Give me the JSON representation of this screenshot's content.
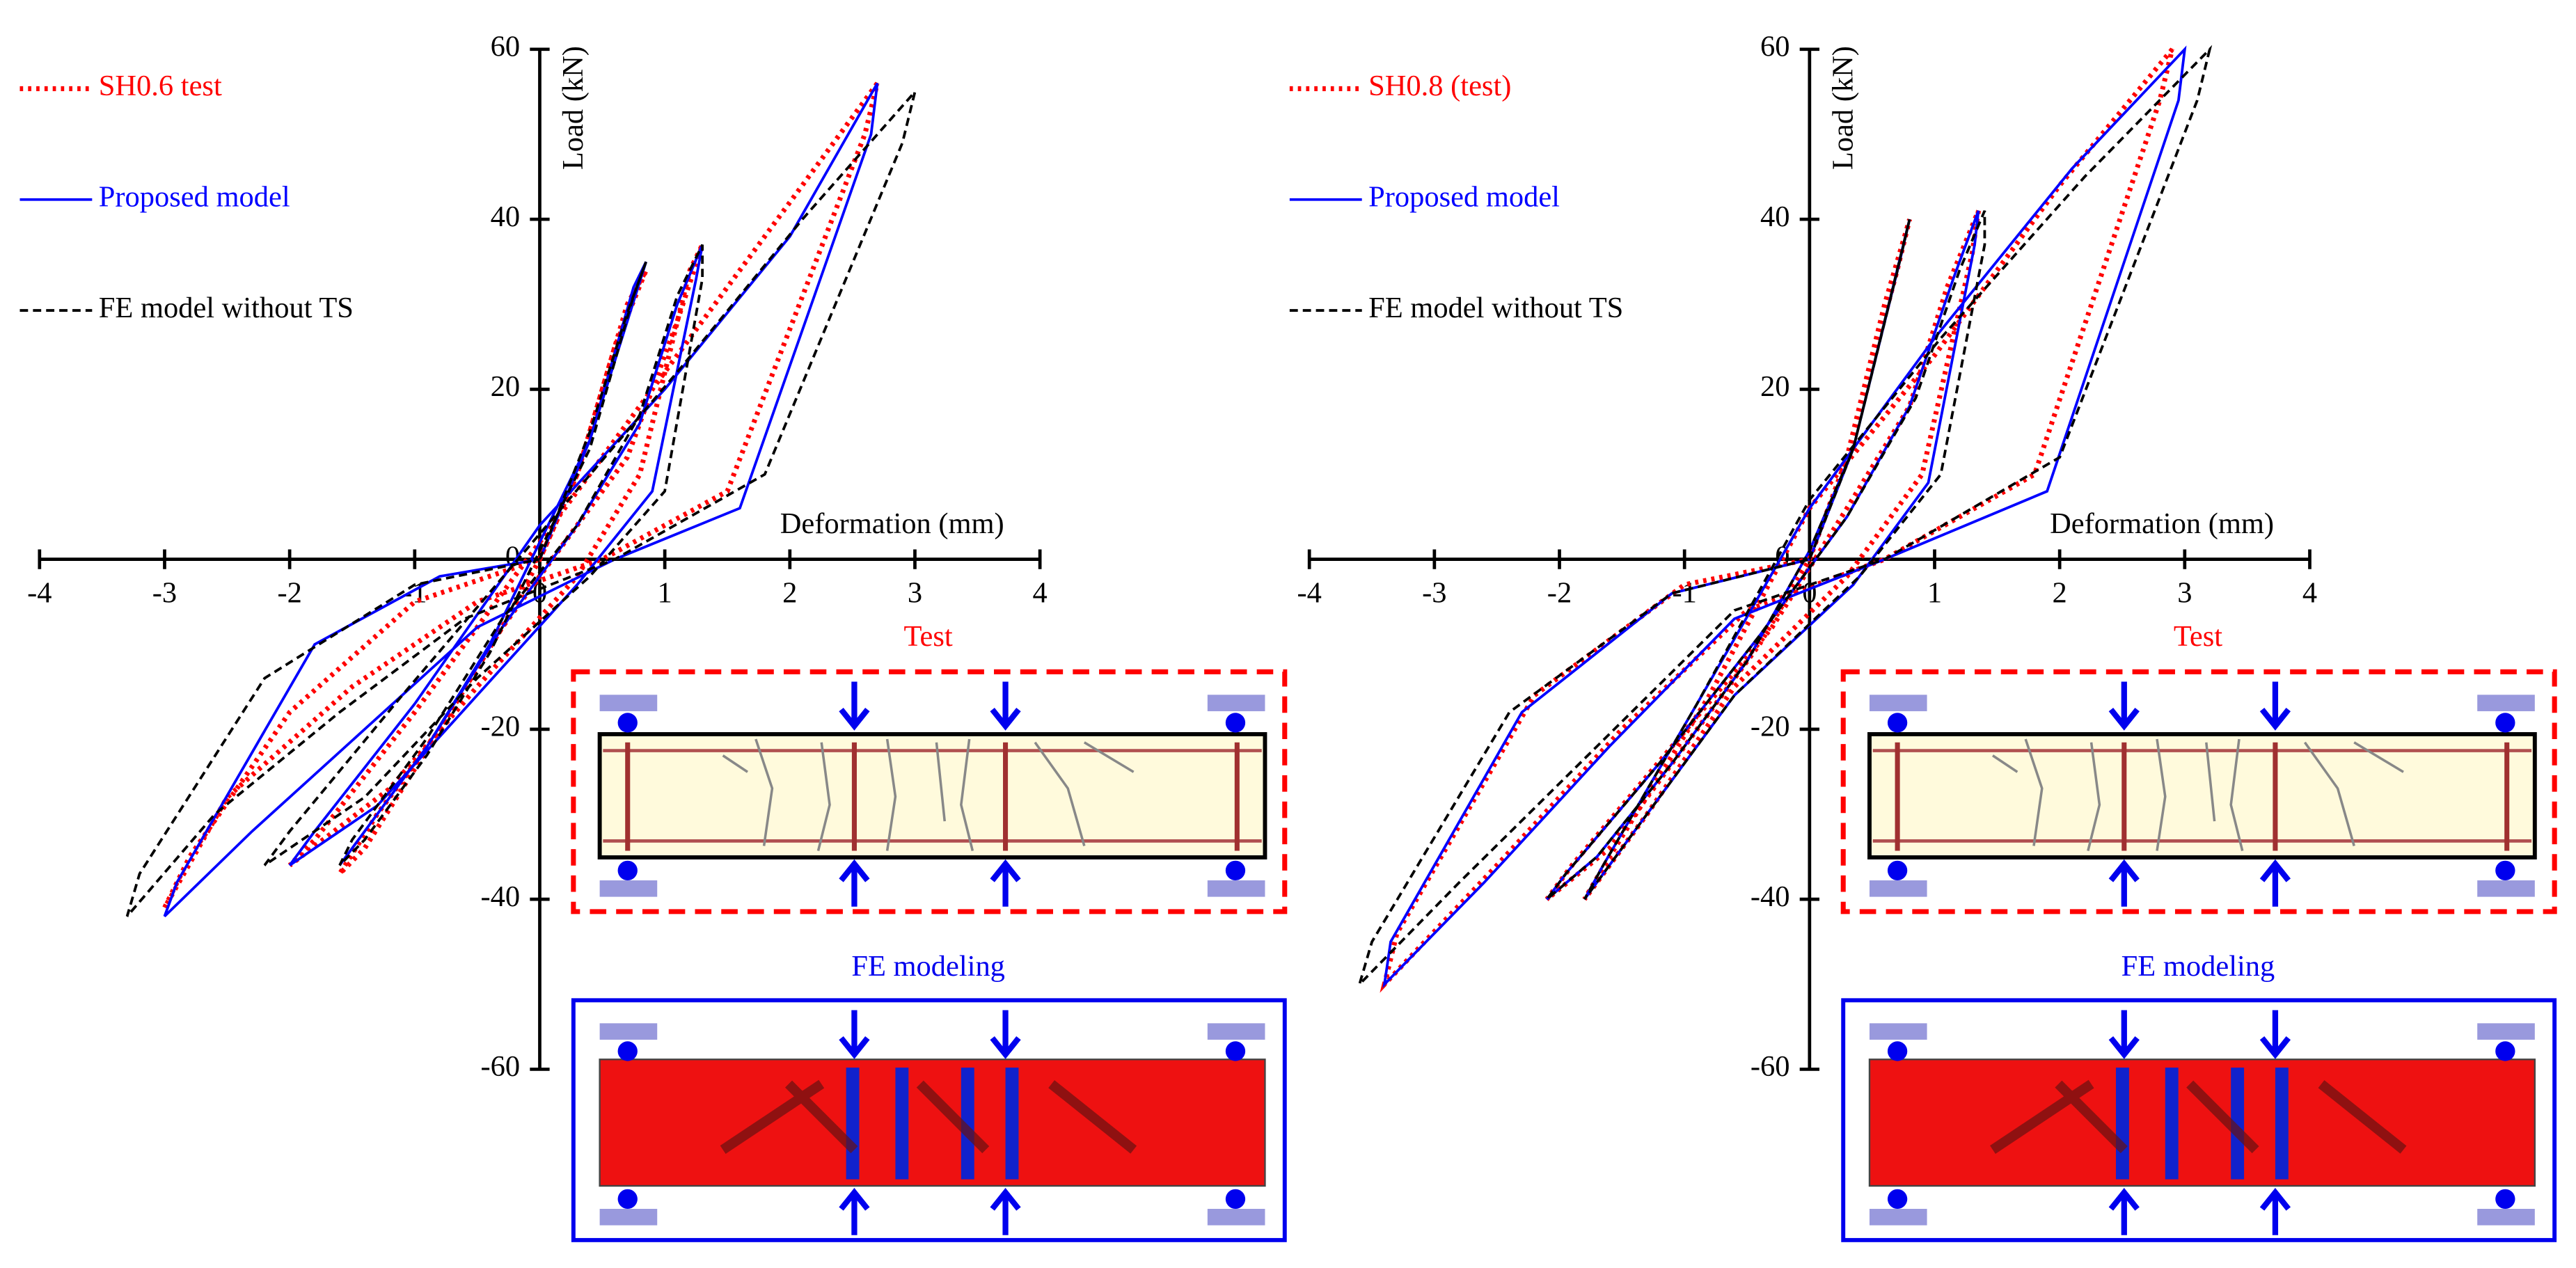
{
  "chart_data": [
    {
      "type": "line",
      "x_label": "Deformation (mm)",
      "y_label": "Load (kN)",
      "xlim": [
        -4,
        4
      ],
      "xticks": [
        -4,
        -3,
        -2,
        -1,
        0,
        1,
        2,
        3,
        4
      ],
      "ylim": [
        -60,
        60
      ],
      "yticks": [
        -60,
        -40,
        -20,
        0,
        20,
        40,
        60
      ],
      "annotations": [
        "Test",
        "FE modeling"
      ],
      "series": [
        {
          "name": "SH0.6 test",
          "color": "#ff0000",
          "style": "dotted",
          "x": [
            0,
            0.3,
            0.6,
            0.85,
            0.7,
            0.3,
            0,
            -0.3,
            -0.8,
            -1.3,
            -1.6,
            -1.4,
            -0.8,
            -0.3,
            0.2,
            0.7,
            1.1,
            1.3,
            1.2,
            0.8,
            0.3,
            -0.5,
            -1.2,
            -2,
            -1.8,
            -1,
            0,
            1,
            2,
            2.7,
            2.6,
            1.5,
            0.5,
            -0.5,
            -1.5,
            -2.5,
            -3,
            -2.8,
            -2,
            -1,
            0
          ],
          "values": [
            0,
            10,
            25,
            34,
            30,
            10,
            0,
            -8,
            -20,
            -30,
            -37,
            -34,
            -20,
            -8,
            2,
            12,
            28,
            37,
            34,
            10,
            -2,
            -15,
            -27,
            -36,
            -33,
            -18,
            2,
            22,
            42,
            56,
            50,
            8,
            0,
            -5,
            -15,
            -28,
            -41,
            -35,
            -18,
            -5,
            0
          ]
        },
        {
          "name": "Proposed model",
          "color": "#0000ff",
          "style": "solid",
          "x": [
            0,
            0.4,
            0.7,
            0.85,
            0.75,
            0.4,
            0,
            -0.4,
            -0.9,
            -1.4,
            -1.6,
            -1.5,
            -0.9,
            -0.3,
            0.3,
            0.8,
            1.1,
            1.3,
            1.25,
            0.9,
            0.3,
            -0.5,
            -1.3,
            -2,
            -1.8,
            -1,
            0,
            1,
            2,
            2.7,
            2.65,
            1.6,
            0.6,
            -0.5,
            -1.4,
            -2.3,
            -3,
            -2.9,
            -1.8,
            -0.8,
            0
          ],
          "values": [
            0,
            14,
            28,
            35,
            32,
            14,
            2,
            -10,
            -22,
            -32,
            -36,
            -34,
            -22,
            -8,
            4,
            16,
            30,
            37,
            33,
            8,
            -3,
            -16,
            -29,
            -36,
            -32,
            -17,
            4,
            20,
            38,
            56,
            50,
            6,
            0,
            -8,
            -20,
            -32,
            -42,
            -38,
            -10,
            -2,
            0
          ]
        },
        {
          "name": "FE model without TS",
          "color": "#000000",
          "style": "dashed",
          "x": [
            0,
            0.4,
            0.7,
            0.85,
            0.75,
            0.4,
            0,
            -0.4,
            -0.9,
            -1.4,
            -1.6,
            -1.5,
            -0.9,
            -0.3,
            0.3,
            0.8,
            1.1,
            1.3,
            1.3,
            1,
            0.4,
            -0.5,
            -1.4,
            -2.2,
            -2,
            -1.1,
            0,
            1.1,
            2.1,
            3,
            2.9,
            1.8,
            0.6,
            -0.6,
            -1.6,
            -2.6,
            -3.3,
            -3.2,
            -2.2,
            -1,
            0
          ],
          "values": [
            0,
            15,
            29,
            35,
            31,
            13,
            1,
            -11,
            -23,
            -33,
            -36,
            -33,
            -21,
            -7,
            4,
            17,
            31,
            37,
            33,
            8,
            -2,
            -14,
            -28,
            -36,
            -32,
            -16,
            3,
            22,
            40,
            55,
            49,
            10,
            0,
            -7,
            -18,
            -30,
            -42,
            -37,
            -14,
            -3,
            0
          ]
        }
      ]
    },
    {
      "type": "line",
      "x_label": "Deformation (mm)",
      "y_label": "Load (kN)",
      "xlim": [
        -4,
        4
      ],
      "xticks": [
        -4,
        -3,
        -2,
        -1,
        0,
        1,
        2,
        3,
        4
      ],
      "ylim": [
        -60,
        60
      ],
      "yticks": [
        -60,
        -40,
        -20,
        0,
        20,
        40,
        60
      ],
      "annotations": [
        "Test",
        "FE modeling"
      ],
      "series": [
        {
          "name": "SH0.8 (test)",
          "color": "#ff0000",
          "style": "dotted",
          "x": [
            0,
            0.3,
            0.6,
            0.8,
            0.7,
            0.3,
            0,
            -0.4,
            -1,
            -1.6,
            -2.1,
            -1.9,
            -1.1,
            -0.3,
            0.3,
            0.8,
            1.1,
            1.35,
            1.3,
            0.9,
            0.3,
            -0.6,
            -1.3,
            -1.8,
            -1.6,
            -0.8,
            0,
            1,
            2,
            2.9,
            2.8,
            1.8,
            0.6,
            -0.5,
            -1.5,
            -2.5,
            -3.4,
            -3.3,
            -2.2,
            -1,
            0
          ],
          "values": [
            0,
            12,
            30,
            40,
            34,
            12,
            0,
            -10,
            -22,
            -34,
            -40,
            -36,
            -22,
            -8,
            6,
            18,
            32,
            41,
            36,
            10,
            -2,
            -15,
            -30,
            -40,
            -35,
            -16,
            6,
            24,
            44,
            60,
            54,
            10,
            0,
            -6,
            -20,
            -36,
            -50,
            -44,
            -16,
            -3,
            0
          ]
        },
        {
          "name": "Proposed model",
          "color": "#0000ff",
          "style": "solid",
          "x": [
            0,
            0.35,
            0.65,
            0.8,
            0.72,
            0.35,
            0,
            -0.5,
            -1.1,
            -1.7,
            -2.1,
            -1.95,
            -1.2,
            -0.4,
            0.3,
            0.8,
            1.15,
            1.35,
            1.32,
            0.95,
            0.35,
            -0.6,
            -1.35,
            -1.8,
            -1.65,
            -0.9,
            0,
            1,
            2.1,
            3,
            2.95,
            1.9,
            0.6,
            -0.6,
            -1.6,
            -2.6,
            -3.4,
            -3.35,
            -2.3,
            -1.1,
            0
          ],
          "values": [
            0,
            13,
            31,
            40,
            35,
            13,
            1,
            -12,
            -24,
            -35,
            -40,
            -37,
            -24,
            -9,
            5,
            18,
            33,
            41,
            37,
            9,
            -3,
            -16,
            -31,
            -40,
            -36,
            -17,
            6,
            26,
            46,
            60,
            54,
            8,
            0,
            -7,
            -22,
            -38,
            -50,
            -45,
            -18,
            -4,
            0
          ]
        },
        {
          "name": "FE model without TS",
          "color": "#000000",
          "style": "dashed",
          "x": [
            0,
            0.35,
            0.65,
            0.8,
            0.72,
            0.35,
            0,
            -0.5,
            -1.1,
            -1.7,
            -2.1,
            -1.95,
            -1.2,
            -0.4,
            0.3,
            0.85,
            1.2,
            1.4,
            1.4,
            1.05,
            0.4,
            -0.6,
            -1.35,
            -1.8,
            -1.65,
            -0.9,
            0,
            1.05,
            2.2,
            3.2,
            3.1,
            2,
            0.6,
            -0.6,
            -1.7,
            -2.8,
            -3.6,
            -3.5,
            -2.4,
            -1.1,
            0
          ],
          "values": [
            0,
            13,
            31,
            40,
            35,
            13,
            1,
            -12,
            -24,
            -35,
            -40,
            -37,
            -24,
            -9,
            5,
            19,
            34,
            41,
            37,
            10,
            -2,
            -16,
            -31,
            -40,
            -36,
            -17,
            7,
            26,
            45,
            60,
            54,
            12,
            0,
            -6,
            -22,
            -38,
            -50,
            -45,
            -18,
            -4,
            0
          ]
        }
      ]
    }
  ]
}
